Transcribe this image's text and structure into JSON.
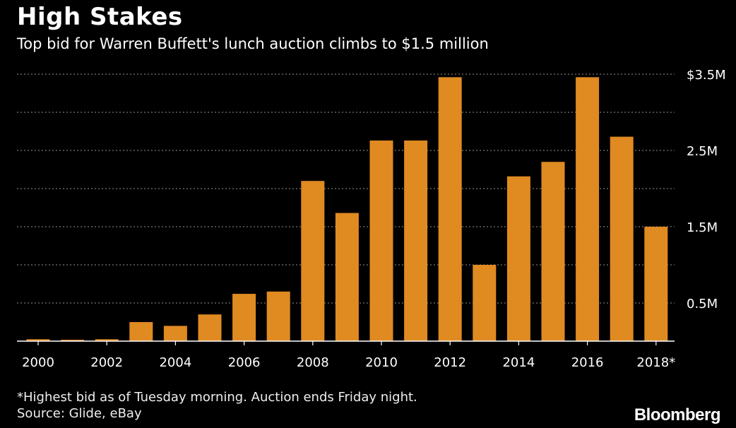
{
  "header": {
    "title": "High Stakes",
    "subtitle": "Top bid for Warren Buffett's lunch auction climbs to $1.5 million"
  },
  "footer": {
    "footnote": "*Highest bid as of Tuesday morning. Auction ends Friday night.",
    "source": "Source: Glide, eBay",
    "logo": "Bloomberg"
  },
  "colors": {
    "bar": "#E08A22",
    "background": "#000000",
    "grid": "#777777",
    "text": "#FFFFFF"
  },
  "chart_data": {
    "type": "bar",
    "title": "High Stakes",
    "subtitle": "Top bid for Warren Buffett's lunch auction climbs to $1.5 million",
    "categories": [
      "2000",
      "2001",
      "2002",
      "2003",
      "2004",
      "2005",
      "2006",
      "2007",
      "2008",
      "2009",
      "2010",
      "2011",
      "2012",
      "2013",
      "2014",
      "2015",
      "2016",
      "2017",
      "2018*"
    ],
    "x_tick_labels": [
      "2000",
      "",
      "2002",
      "",
      "2004",
      "",
      "2006",
      "",
      "2008",
      "",
      "2010",
      "",
      "2012",
      "",
      "2014",
      "",
      "2016",
      "",
      "2018*"
    ],
    "values": [
      0.025,
      0.018,
      0.025,
      0.25,
      0.2,
      0.35,
      0.62,
      0.65,
      2.1,
      1.68,
      2.63,
      2.63,
      3.46,
      1.0,
      2.16,
      2.35,
      3.46,
      2.68,
      1.5
    ],
    "unit": "millions USD",
    "ylim": [
      0,
      3.5
    ],
    "y_ticks": [
      {
        "value": 0.5,
        "label": "0.5M"
      },
      {
        "value": 1.0,
        "label": ""
      },
      {
        "value": 1.5,
        "label": "1.5M"
      },
      {
        "value": 2.0,
        "label": ""
      },
      {
        "value": 2.5,
        "label": "2.5M"
      },
      {
        "value": 3.0,
        "label": ""
      },
      {
        "value": 3.5,
        "label": "$3.5M"
      }
    ],
    "y_axis_side": "right",
    "grid": true,
    "xlabel": "",
    "ylabel": ""
  }
}
